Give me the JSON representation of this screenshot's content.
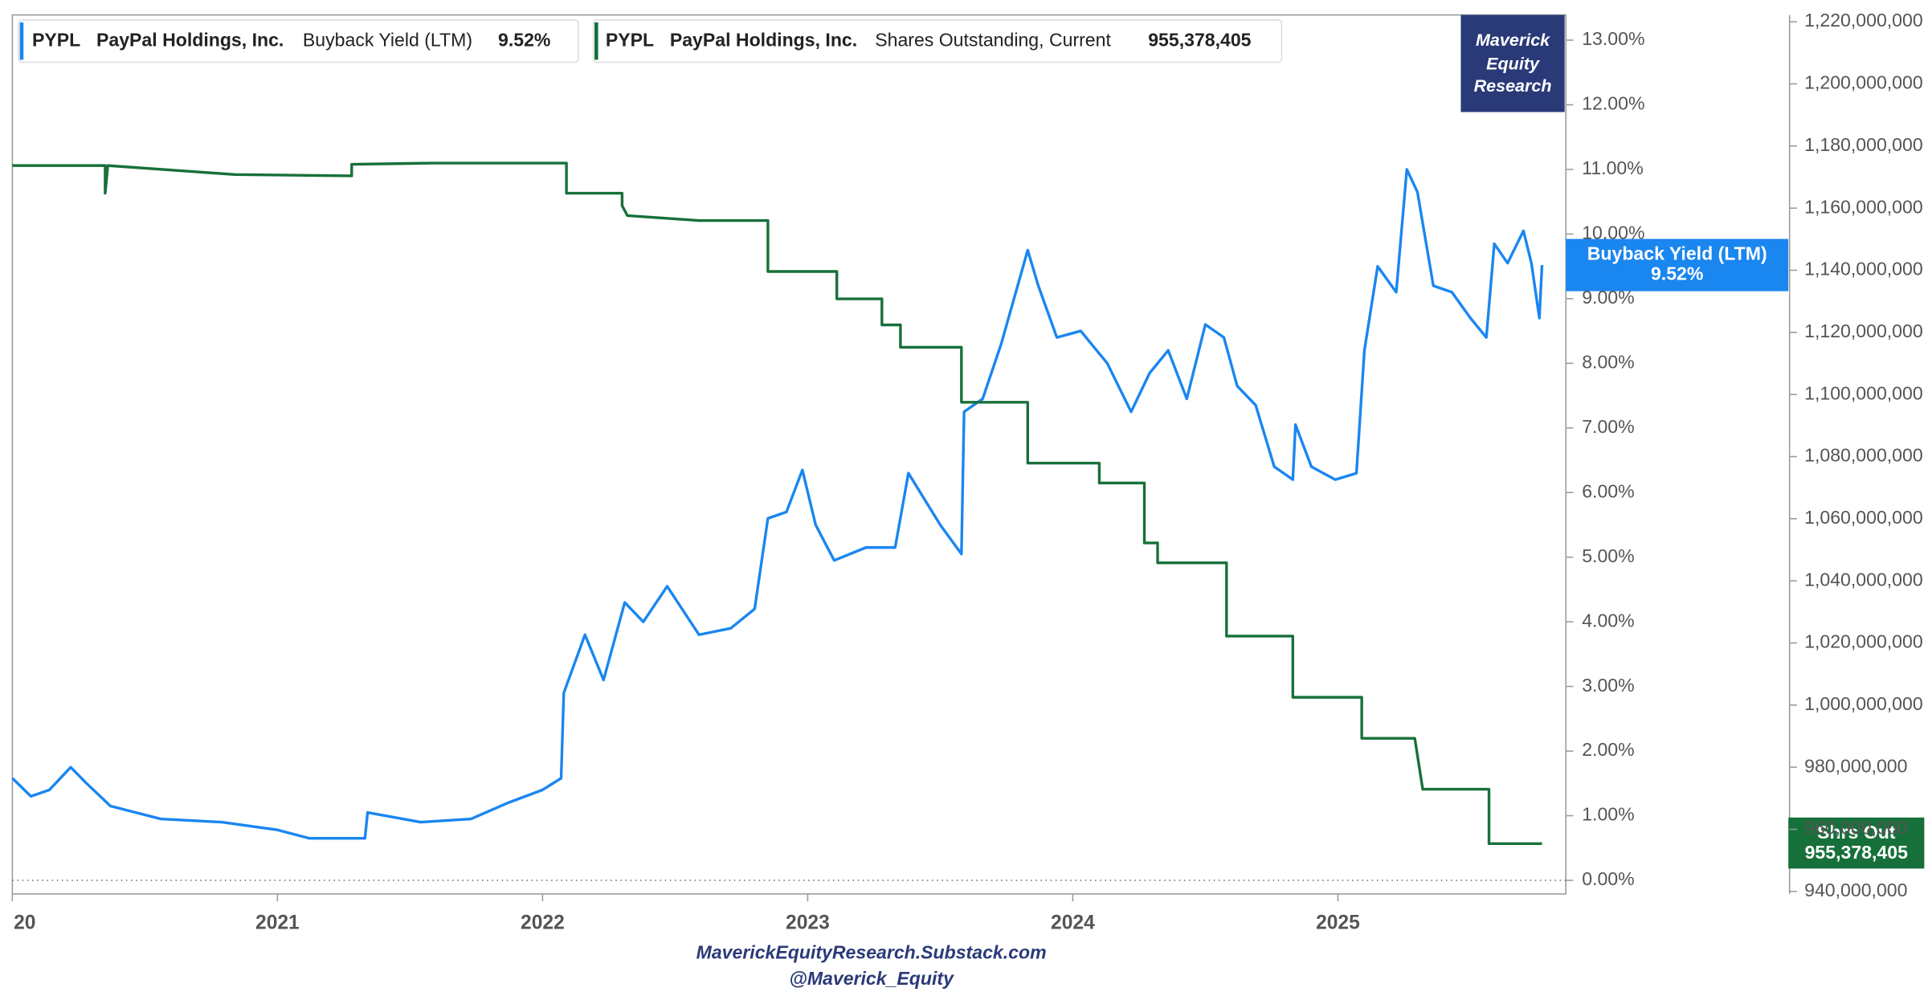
{
  "chart_data": {
    "type": "line",
    "ticker": "PYPL",
    "company": "PayPal Holdings, Inc.",
    "brand": [
      "Maverick",
      "Equity",
      "Research"
    ],
    "footer": [
      "MaverickEquityResearch.Substack.com",
      "@Maverick_Equity"
    ],
    "xlim": [
      2020,
      2025.86
    ],
    "xticks": [
      {
        "value": 2020,
        "label": "20"
      },
      2021,
      2022,
      2023,
      2024,
      2025
    ],
    "ylim": [
      -0.21,
      13.39
    ],
    "yticks": [
      {
        "value": 0,
        "label": "0.00%"
      },
      {
        "value": 1,
        "label": "1.00%"
      },
      {
        "value": 2,
        "label": "2.00%"
      },
      {
        "value": 3,
        "label": "3.00%"
      },
      {
        "value": 4,
        "label": "4.00%"
      },
      {
        "value": 5,
        "label": "5.00%"
      },
      {
        "value": 6,
        "label": "6.00%"
      },
      {
        "value": 7,
        "label": "7.00%"
      },
      {
        "value": 8,
        "label": "8.00%"
      },
      {
        "value": 9,
        "label": "9.00%"
      },
      {
        "value": 10,
        "label": "10.00%"
      },
      {
        "value": 11,
        "label": "11.00%"
      },
      {
        "value": 12,
        "label": "12.00%"
      },
      {
        "value": 13,
        "label": "13.00%"
      }
    ],
    "y2lim": [
      939200000,
      1222200000
    ],
    "y2ticks": [
      {
        "value": 940000000,
        "label": "940,000,000"
      },
      {
        "value": 960000000,
        "label": "960,000,000"
      },
      {
        "value": 980000000,
        "label": "980,000,000"
      },
      {
        "value": 1000000000,
        "label": "1,000,000,000"
      },
      {
        "value": 1020000000,
        "label": "1,020,000,000"
      },
      {
        "value": 1040000000,
        "label": "1,040,000,000"
      },
      {
        "value": 1060000000,
        "label": "1,060,000,000"
      },
      {
        "value": 1080000000,
        "label": "1,080,000,000"
      },
      {
        "value": 1100000000,
        "label": "1,100,000,000"
      },
      {
        "value": 1120000000,
        "label": "1,120,000,000"
      },
      {
        "value": 1140000000,
        "label": "1,140,000,000"
      },
      {
        "value": 1160000000,
        "label": "1,160,000,000"
      },
      {
        "value": 1180000000,
        "label": "1,180,000,000"
      },
      {
        "value": 1200000000,
        "label": "1,200,000,000"
      },
      {
        "value": 1220000000,
        "label": "1,220,000,000"
      }
    ],
    "series": [
      {
        "name": "Buyback Yield (LTM)",
        "color": "#1a86f0",
        "x": [
          2020.0,
          2020.07,
          2020.14,
          2020.22,
          2020.28,
          2020.37,
          2020.56,
          2020.79,
          2021.0,
          2021.12,
          2021.33,
          2021.34,
          2021.54,
          2021.73,
          2021.87,
          2022.0,
          2022.07,
          2022.08,
          2022.16,
          2022.23,
          2022.31,
          2022.38,
          2022.47,
          2022.59,
          2022.71,
          2022.8,
          2022.85,
          2022.92,
          2022.98,
          2023.03,
          2023.1,
          2023.22,
          2023.33,
          2023.38,
          2023.5,
          2023.58,
          2023.59,
          2023.66,
          2023.73,
          2023.83,
          2023.87,
          2023.94,
          2024.03,
          2024.13,
          2024.22,
          2024.29,
          2024.36,
          2024.43,
          2024.5,
          2024.57,
          2024.62,
          2024.69,
          2024.76,
          2024.83,
          2024.84,
          2024.9,
          2024.99,
          2025.07,
          2025.1,
          2025.15,
          2025.22,
          2025.26,
          2025.3,
          2025.36,
          2025.43,
          2025.5,
          2025.56,
          2025.59,
          2025.64,
          2025.7,
          2025.73,
          2025.76,
          2025.77
        ],
        "values": [
          1.58,
          1.3,
          1.4,
          1.75,
          1.5,
          1.15,
          0.95,
          0.9,
          0.78,
          0.65,
          0.65,
          1.05,
          0.9,
          0.95,
          1.2,
          1.4,
          1.58,
          2.9,
          3.8,
          3.1,
          4.3,
          4.0,
          4.55,
          3.8,
          3.9,
          4.2,
          5.6,
          5.7,
          6.35,
          5.5,
          4.95,
          5.15,
          5.15,
          6.3,
          5.5,
          5.05,
          7.25,
          7.45,
          8.3,
          9.75,
          9.2,
          8.4,
          8.5,
          8.0,
          7.25,
          7.85,
          8.2,
          7.45,
          8.6,
          8.4,
          7.65,
          7.35,
          6.4,
          6.2,
          7.05,
          6.4,
          6.2,
          6.3,
          8.2,
          9.5,
          9.1,
          11.0,
          10.65,
          9.2,
          9.1,
          8.7,
          8.4,
          9.85,
          9.55,
          10.05,
          9.55,
          8.7,
          9.52
        ],
        "value_labels": [
          null,
          null,
          null,
          null,
          null,
          null,
          null,
          null,
          null,
          null,
          null,
          null,
          null,
          null,
          null,
          null,
          null,
          null,
          null,
          null,
          null,
          null,
          null,
          null,
          null,
          null,
          null,
          null,
          null,
          null,
          null,
          null,
          null,
          null,
          null,
          null,
          null,
          null,
          null,
          null,
          null,
          null,
          null,
          null,
          null,
          null,
          null,
          null,
          null,
          null,
          null,
          null,
          null,
          null,
          null,
          null,
          null,
          null,
          null,
          null,
          null,
          null,
          null,
          null,
          null,
          null,
          null,
          null,
          null,
          null,
          null,
          null,
          "9.52%"
        ]
      },
      {
        "name": "Shares Outstanding, Current",
        "flag_label": "Shrs Out",
        "color": "#17703a",
        "axis": "y2",
        "x": [
          2020.0,
          2020.35,
          2020.35,
          2020.36,
          2020.84,
          2021.28,
          2021.28,
          2021.58,
          2022.09,
          2022.09,
          2022.3,
          2022.3,
          2022.32,
          2022.59,
          2022.85,
          2022.85,
          2023.11,
          2023.11,
          2023.28,
          2023.28,
          2023.35,
          2023.35,
          2023.58,
          2023.58,
          2023.83,
          2023.83,
          2024.1,
          2024.1,
          2024.27,
          2024.27,
          2024.32,
          2024.32,
          2024.58,
          2024.58,
          2024.83,
          2024.83,
          2025.09,
          2025.09,
          2025.29,
          2025.32,
          2025.57,
          2025.57,
          2025.77
        ],
        "values": [
          1173700000,
          1173700000,
          1164800000,
          1173700000,
          1170800000,
          1170400000,
          1174100000,
          1174500000,
          1174500000,
          1164800000,
          1164800000,
          1160800000,
          1157600000,
          1156000000,
          1156000000,
          1139600000,
          1139600000,
          1130800000,
          1130800000,
          1122400000,
          1122400000,
          1115200000,
          1115200000,
          1097500000,
          1097500000,
          1077900000,
          1077900000,
          1071500000,
          1071500000,
          1052200000,
          1052200000,
          1045800000,
          1045800000,
          1022200000,
          1022200000,
          1002500000,
          1002500000,
          989300000,
          989300000,
          972900000,
          972900000,
          955378405,
          955378405
        ],
        "value_labels": [
          null,
          null,
          null,
          null,
          null,
          null,
          null,
          null,
          null,
          null,
          null,
          null,
          null,
          null,
          null,
          null,
          null,
          null,
          null,
          null,
          null,
          null,
          null,
          null,
          null,
          null,
          null,
          null,
          null,
          null,
          null,
          null,
          null,
          null,
          null,
          null,
          null,
          null,
          null,
          null,
          null,
          null,
          "955,378,405"
        ]
      }
    ]
  }
}
